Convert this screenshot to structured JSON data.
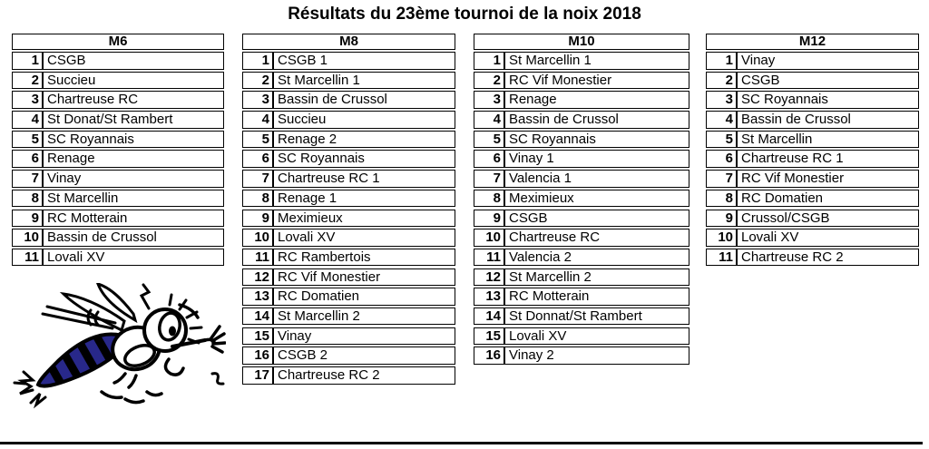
{
  "title": "Résultats du 23ème tournoi de la noix 2018",
  "tables": [
    {
      "header": "M6",
      "rows": [
        {
          "rank": "1",
          "name": "CSGB"
        },
        {
          "rank": "2",
          "name": "Succieu"
        },
        {
          "rank": "3",
          "name": "Chartreuse RC"
        },
        {
          "rank": "4",
          "name": "St Donat/St Rambert"
        },
        {
          "rank": "5",
          "name": "SC Royannais"
        },
        {
          "rank": "6",
          "name": "Renage"
        },
        {
          "rank": "7",
          "name": "Vinay"
        },
        {
          "rank": "8",
          "name": "St Marcellin"
        },
        {
          "rank": "9",
          "name": "RC Motterain"
        },
        {
          "rank": "10",
          "name": "Bassin de Crussol"
        },
        {
          "rank": "11",
          "name": "Lovali XV"
        }
      ]
    },
    {
      "header": "M8",
      "rows": [
        {
          "rank": "1",
          "name": "CSGB 1"
        },
        {
          "rank": "2",
          "name": "St Marcellin 1"
        },
        {
          "rank": "3",
          "name": "Bassin de Crussol"
        },
        {
          "rank": "4",
          "name": "Succieu"
        },
        {
          "rank": "5",
          "name": "Renage 2"
        },
        {
          "rank": "6",
          "name": "SC Royannais"
        },
        {
          "rank": "7",
          "name": "Chartreuse RC 1"
        },
        {
          "rank": "8",
          "name": "Renage 1"
        },
        {
          "rank": "9",
          "name": "Meximieux"
        },
        {
          "rank": "10",
          "name": "Lovali XV"
        },
        {
          "rank": "11",
          "name": "RC Rambertois"
        },
        {
          "rank": "12",
          "name": "RC Vif Monestier"
        },
        {
          "rank": "13",
          "name": "RC Domatien"
        },
        {
          "rank": "14",
          "name": "St Marcellin 2"
        },
        {
          "rank": "15",
          "name": "Vinay"
        },
        {
          "rank": "16",
          "name": "CSGB 2"
        },
        {
          "rank": "17",
          "name": "Chartreuse RC 2"
        }
      ]
    },
    {
      "header": "M10",
      "rows": [
        {
          "rank": "1",
          "name": "St Marcellin 1"
        },
        {
          "rank": "2",
          "name": "RC Vif Monestier"
        },
        {
          "rank": "3",
          "name": "Renage"
        },
        {
          "rank": "4",
          "name": "Bassin de Crussol"
        },
        {
          "rank": "5",
          "name": "SC Royannais"
        },
        {
          "rank": "6",
          "name": "Vinay 1"
        },
        {
          "rank": "7",
          "name": "Valencia 1"
        },
        {
          "rank": "8",
          "name": "Meximieux"
        },
        {
          "rank": "9",
          "name": "CSGB"
        },
        {
          "rank": "10",
          "name": "Chartreuse RC"
        },
        {
          "rank": "11",
          "name": "Valencia 2"
        },
        {
          "rank": "12",
          "name": "St Marcellin 2"
        },
        {
          "rank": "13",
          "name": "RC Motterain"
        },
        {
          "rank": "14",
          "name": "St Donnat/St Rambert"
        },
        {
          "rank": "15",
          "name": "Lovali XV"
        },
        {
          "rank": "16",
          "name": "Vinay 2"
        }
      ]
    },
    {
      "header": "M12",
      "rows": [
        {
          "rank": "1",
          "name": "Vinay"
        },
        {
          "rank": "2",
          "name": "CSGB"
        },
        {
          "rank": "3",
          "name": "SC Royannais"
        },
        {
          "rank": "4",
          "name": "Bassin de Crussol"
        },
        {
          "rank": "5",
          "name": "St Marcellin"
        },
        {
          "rank": "6",
          "name": "Chartreuse RC 1"
        },
        {
          "rank": "7",
          "name": "RC Vif Monestier"
        },
        {
          "rank": "8",
          "name": "RC Domatien"
        },
        {
          "rank": "9",
          "name": "Crussol/CSGB"
        },
        {
          "rank": "10",
          "name": "Lovali XV"
        },
        {
          "rank": "11",
          "name": "Chartreuse RC 2"
        }
      ]
    }
  ],
  "mascot": {
    "icon": "wasp-cartoon-icon"
  },
  "colors": {
    "text": "#000000",
    "table_border": "#000000",
    "wasp_stripe_blue": "#28288a",
    "background": "#ffffff"
  }
}
